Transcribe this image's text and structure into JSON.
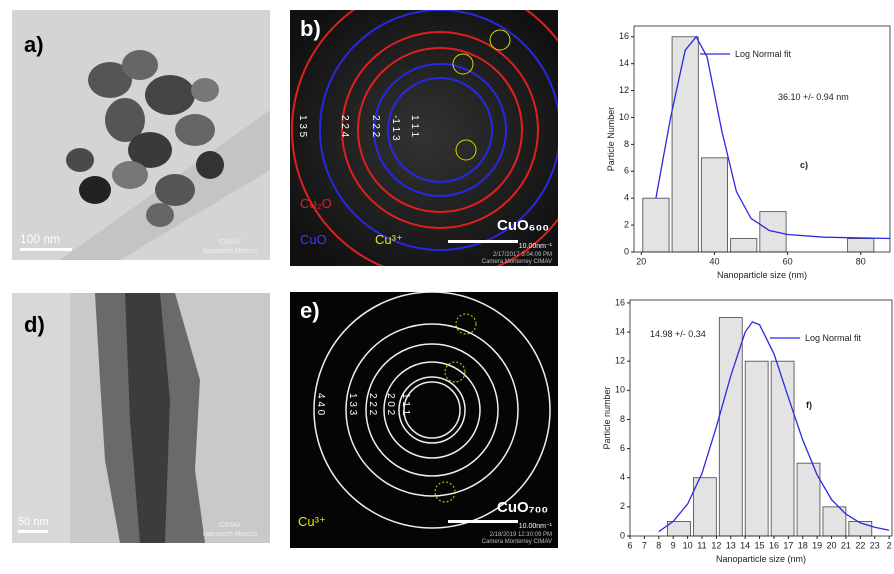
{
  "panels": [
    {
      "label": "a)",
      "scale_bar": "100 nm",
      "watermark": [
        "CIMAV",
        "Nanotech Mexico"
      ]
    },
    {
      "label": "b)",
      "ring_labels": [
        "1 3 5",
        "2 2 4",
        "2 2 2",
        "-1 1 3",
        "1 1 1"
      ],
      "legend": [
        "Cu₂O",
        "CuO",
        "Cu³⁺"
      ],
      "sample": "CuO₆₀₀",
      "scale_bar": "10.00nm⁻¹",
      "caption": [
        "2/17/2017 3:04:09 PM",
        "Camera Monterrey CIMAV"
      ]
    },
    {
      "label": "d)",
      "scale_bar": "50 nm",
      "watermark": [
        "CIMAV",
        "Nanotech Mexico"
      ]
    },
    {
      "label": "e)",
      "ring_labels": [
        "4 4 0",
        "1 3 3",
        "2 2 2",
        "2 0 2",
        "1 1 1"
      ],
      "legend": [
        "Cu³⁺"
      ],
      "sample": "CuO₇₀₀",
      "scale_bar": "10.00nm⁻¹",
      "caption": [
        "2/18/2019 12:30:09 PM",
        "Camera Monterrey CIMAV"
      ]
    }
  ],
  "chart_data": [
    {
      "type": "histogram",
      "label": "c)",
      "xlabel": "Nanoparticle size (nm)",
      "ylabel": "Particle Number",
      "bins": [
        20,
        28,
        36,
        44,
        52,
        60,
        68,
        76,
        84
      ],
      "values": [
        4,
        16,
        7,
        1,
        3,
        0,
        0,
        1
      ],
      "color": "#e3e3e3",
      "fit": {
        "name": "Log Normal fit",
        "color": "#2a2ae0",
        "x": [
          24,
          28,
          32,
          35,
          38,
          42,
          46,
          50,
          55,
          60,
          70,
          88
        ],
        "y": [
          4,
          10,
          15,
          16,
          14.5,
          9,
          4.5,
          2.5,
          1.6,
          1.3,
          1.1,
          1.0
        ]
      },
      "annotation": "36.10 +/- 0.94 nm",
      "xlim": [
        18,
        88
      ],
      "ylim": [
        0,
        16.8
      ],
      "xticks": [
        20,
        40,
        60,
        80
      ],
      "yticks": [
        0,
        2,
        4,
        6,
        8,
        10,
        12,
        14,
        16
      ]
    },
    {
      "type": "histogram",
      "label": "f)",
      "xlabel": "Nanoparticle size (nm)",
      "ylabel": "Particle number",
      "bins": [
        8.5,
        10.3,
        12.1,
        13.9,
        15.7,
        17.5,
        19.3,
        21.1,
        22.9
      ],
      "values": [
        1,
        4,
        15,
        12,
        12,
        5,
        2,
        1
      ],
      "color": "#e3e3e3",
      "fit": {
        "name": "Log Normal fit",
        "color": "#2a2ae0",
        "x": [
          8,
          9,
          10,
          11,
          12,
          13,
          14,
          14.5,
          15,
          16,
          17,
          18,
          19,
          20,
          21,
          22,
          23,
          24
        ],
        "y": [
          0.3,
          1,
          2.2,
          4.3,
          7.5,
          11,
          14,
          14.7,
          14.5,
          12.5,
          9.5,
          6.6,
          4.2,
          2.5,
          1.5,
          0.9,
          0.6,
          0.4
        ]
      },
      "annotation": "14.98 +/- 0.34",
      "xlim": [
        6,
        24.2
      ],
      "ylim": [
        0,
        16.2
      ],
      "xticks": [
        6,
        7,
        8,
        9,
        10,
        11,
        12,
        13,
        14,
        15,
        16,
        17,
        18,
        19,
        20,
        21,
        22,
        23,
        {
          "value": 24,
          "label": "2"
        }
      ],
      "yticks": [
        0,
        2,
        4,
        6,
        8,
        10,
        12,
        14,
        16
      ]
    }
  ]
}
